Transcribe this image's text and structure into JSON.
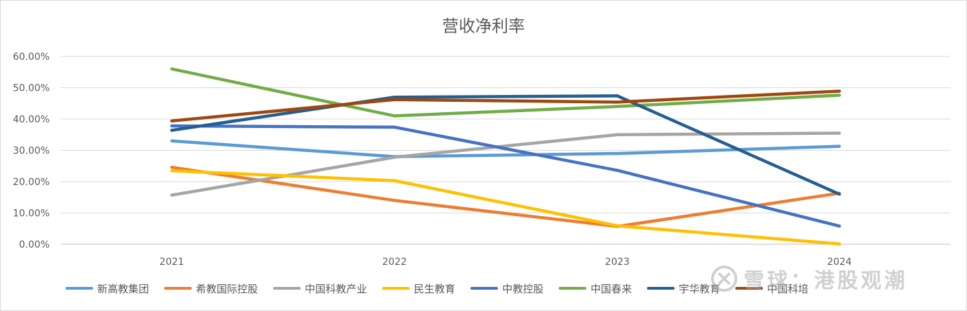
{
  "chart_data": {
    "type": "line",
    "title": "营收净利率",
    "x": [
      "2021",
      "2022",
      "2023",
      "2024"
    ],
    "ylim": [
      0,
      60
    ],
    "yticks": [
      "0.00%",
      "10.00%",
      "20.00%",
      "30.00%",
      "40.00%",
      "50.00%",
      "60.00%"
    ],
    "ytick_values": [
      0,
      10,
      20,
      30,
      40,
      50,
      60
    ],
    "grid": true,
    "legend_position": "bottom",
    "series": [
      {
        "name": "新高教集团",
        "color": "#5B9BD5",
        "values": [
          33.0,
          28.0,
          29.0,
          31.3
        ]
      },
      {
        "name": "希教国际控股",
        "color": "#ED7D31",
        "values": [
          24.6,
          14.0,
          5.7,
          16.3
        ]
      },
      {
        "name": "中国科教产业",
        "color": "#A5A5A5",
        "values": [
          15.7,
          27.8,
          35.0,
          35.5
        ]
      },
      {
        "name": "民生教育",
        "color": "#FFC000",
        "values": [
          23.5,
          20.3,
          5.9,
          0.1
        ]
      },
      {
        "name": "中教控股",
        "color": "#4472C4",
        "values": [
          37.8,
          37.4,
          23.6,
          5.8
        ]
      },
      {
        "name": "中国春来",
        "color": "#70AD47",
        "values": [
          56.0,
          41.0,
          44.0,
          47.6
        ]
      },
      {
        "name": "宇华教育",
        "color": "#255E91",
        "values": [
          36.4,
          47.0,
          47.4,
          16.0
        ]
      },
      {
        "name": "中国科培",
        "color": "#9E480E",
        "values": [
          39.4,
          46.2,
          45.4,
          48.9
        ]
      }
    ]
  },
  "watermark": {
    "text": "雪球：港股观潮"
  }
}
